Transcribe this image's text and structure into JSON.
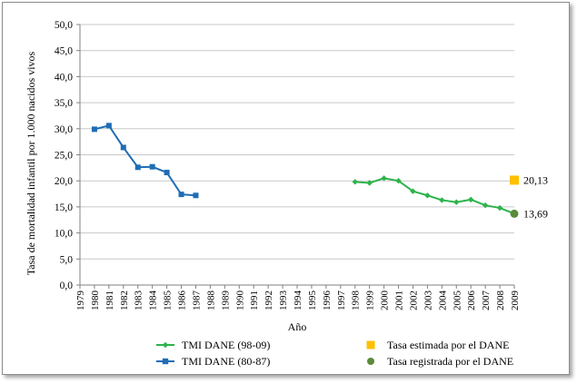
{
  "chart_data": {
    "type": "line",
    "xlabel": "Año",
    "ylabel": "Tasa de mortalidad infantil por 1.000 nacidos vivos",
    "ylim": [
      0,
      50
    ],
    "ytick_labels": [
      "0,0",
      "5,0",
      "10,0",
      "15,0",
      "20,0",
      "25,0",
      "30,0",
      "35,0",
      "40,0",
      "45,0",
      "50,0"
    ],
    "categories": [
      "1979",
      "1980",
      "1981",
      "1982",
      "1983",
      "1984",
      "1985",
      "1986",
      "1987",
      "1988",
      "1989",
      "1990",
      "1991",
      "1992",
      "1993",
      "1994",
      "1995",
      "1996",
      "1997",
      "1998",
      "1999",
      "2000",
      "2001",
      "2002",
      "2003",
      "2004",
      "2005",
      "2006",
      "2007",
      "2008",
      "2009"
    ],
    "grid": "horizontal",
    "legend_position": "bottom",
    "series": [
      {
        "name": "TMI DANE (98-09)",
        "color": "#2db34a",
        "marker": "diamond",
        "x": [
          "1998",
          "1999",
          "2000",
          "2001",
          "2002",
          "2003",
          "2004",
          "2005",
          "2006",
          "2007",
          "2008",
          "2009"
        ],
        "values": [
          19.8,
          19.6,
          20.5,
          20.0,
          18.0,
          17.2,
          16.3,
          15.9,
          16.4,
          15.3,
          14.8,
          13.7
        ]
      },
      {
        "name": "TMI DANE (80-87)",
        "color": "#1f6db5",
        "marker": "square",
        "x": [
          "1980",
          "1981",
          "1982",
          "1983",
          "1984",
          "1985",
          "1986",
          "1987"
        ],
        "values": [
          29.9,
          30.6,
          26.4,
          22.6,
          22.7,
          21.6,
          17.4,
          17.2
        ]
      },
      {
        "name": "Tasa estimada por el DANE",
        "color": "#ffc000",
        "marker": "square",
        "x": [
          "2009"
        ],
        "values": [
          20.13
        ],
        "label": "20,13"
      },
      {
        "name": "Tasa registrada por el DANE",
        "color": "#5a8a3a",
        "marker": "circle",
        "x": [
          "2009"
        ],
        "values": [
          13.69
        ],
        "label": "13,69"
      }
    ]
  }
}
